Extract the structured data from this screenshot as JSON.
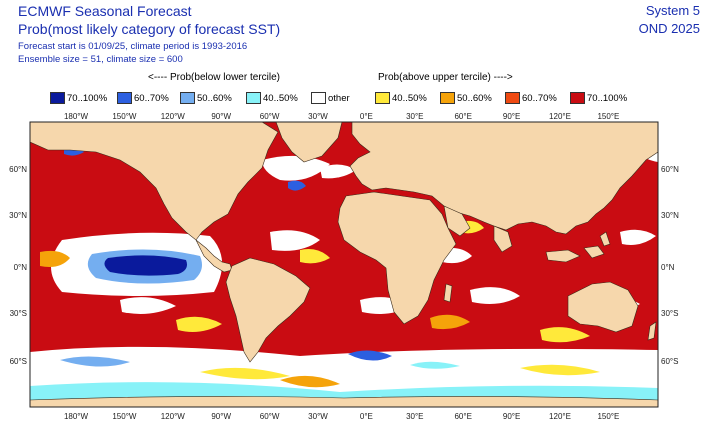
{
  "header": {
    "title": "ECMWF Seasonal Forecast",
    "subtitle": "Prob(most likely category of forecast SST)",
    "forecast_info": "Forecast start is 01/09/25, climate period is 1993-2016",
    "ensemble_info": "Ensemble size = 51, climate size = 600",
    "system": "System 5",
    "period": "OND 2025"
  },
  "legend": {
    "below_caption": "<---- Prob(below lower tercile)",
    "above_caption": "Prob(above upper tercile) ---->",
    "items": [
      {
        "label": "70..100%",
        "color": "#0a1a9c"
      },
      {
        "label": "60..70%",
        "color": "#2c5fe0"
      },
      {
        "label": "50..60%",
        "color": "#74aef0"
      },
      {
        "label": "40..50%",
        "color": "#88f2f8"
      },
      {
        "label": "other",
        "color": "#ffffff"
      },
      {
        "label": "40..50%",
        "color": "#ffe93a"
      },
      {
        "label": "50..60%",
        "color": "#f5a30a"
      },
      {
        "label": "60..70%",
        "color": "#ee4a12"
      },
      {
        "label": "70..100%",
        "color": "#c90c12"
      }
    ]
  },
  "map": {
    "land_color": "#f6d7ac",
    "lon_labels": [
      "180°W",
      "150°W",
      "120°W",
      "90°W",
      "60°W",
      "30°W",
      "0°E",
      "30°E",
      "60°E",
      "90°E",
      "120°E",
      "150°E"
    ],
    "lat_labels": [
      "60°N",
      "30°N",
      "0°N",
      "30°S",
      "60°S"
    ]
  }
}
